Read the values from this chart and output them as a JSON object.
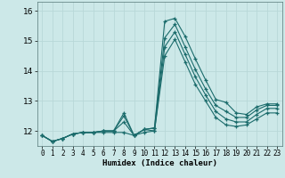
{
  "xlabel": "Humidex (Indice chaleur)",
  "background_color": "#cce8e8",
  "grid_color": "#b8d8d8",
  "line_color": "#1a6b6b",
  "xlim": [
    -0.5,
    23.5
  ],
  "ylim": [
    11.5,
    16.3
  ],
  "yticks": [
    12,
    13,
    14,
    15,
    16
  ],
  "xticks": [
    0,
    1,
    2,
    3,
    4,
    5,
    6,
    7,
    8,
    9,
    10,
    11,
    12,
    13,
    14,
    15,
    16,
    17,
    18,
    19,
    20,
    21,
    22,
    23
  ],
  "series": [
    [
      11.85,
      11.65,
      11.75,
      11.9,
      11.95,
      11.95,
      12.0,
      12.0,
      12.6,
      11.85,
      12.05,
      12.1,
      15.65,
      15.75,
      15.15,
      14.4,
      13.7,
      13.05,
      12.95,
      12.6,
      12.55,
      12.8,
      12.9,
      12.9
    ],
    [
      11.85,
      11.65,
      11.75,
      11.9,
      11.95,
      11.95,
      12.0,
      12.0,
      12.5,
      11.85,
      12.05,
      12.1,
      15.1,
      15.55,
      14.8,
      14.05,
      13.4,
      12.85,
      12.65,
      12.45,
      12.45,
      12.7,
      12.85,
      12.85
    ],
    [
      11.85,
      11.65,
      11.75,
      11.9,
      11.95,
      11.95,
      12.0,
      12.0,
      12.3,
      11.85,
      12.05,
      12.0,
      14.8,
      15.3,
      14.55,
      13.8,
      13.2,
      12.65,
      12.4,
      12.3,
      12.3,
      12.55,
      12.75,
      12.75
    ],
    [
      11.85,
      11.65,
      11.75,
      11.9,
      11.95,
      11.95,
      11.95,
      11.95,
      11.95,
      11.85,
      11.95,
      12.0,
      14.5,
      15.05,
      14.3,
      13.55,
      13.0,
      12.45,
      12.2,
      12.15,
      12.2,
      12.4,
      12.6,
      12.6
    ]
  ]
}
